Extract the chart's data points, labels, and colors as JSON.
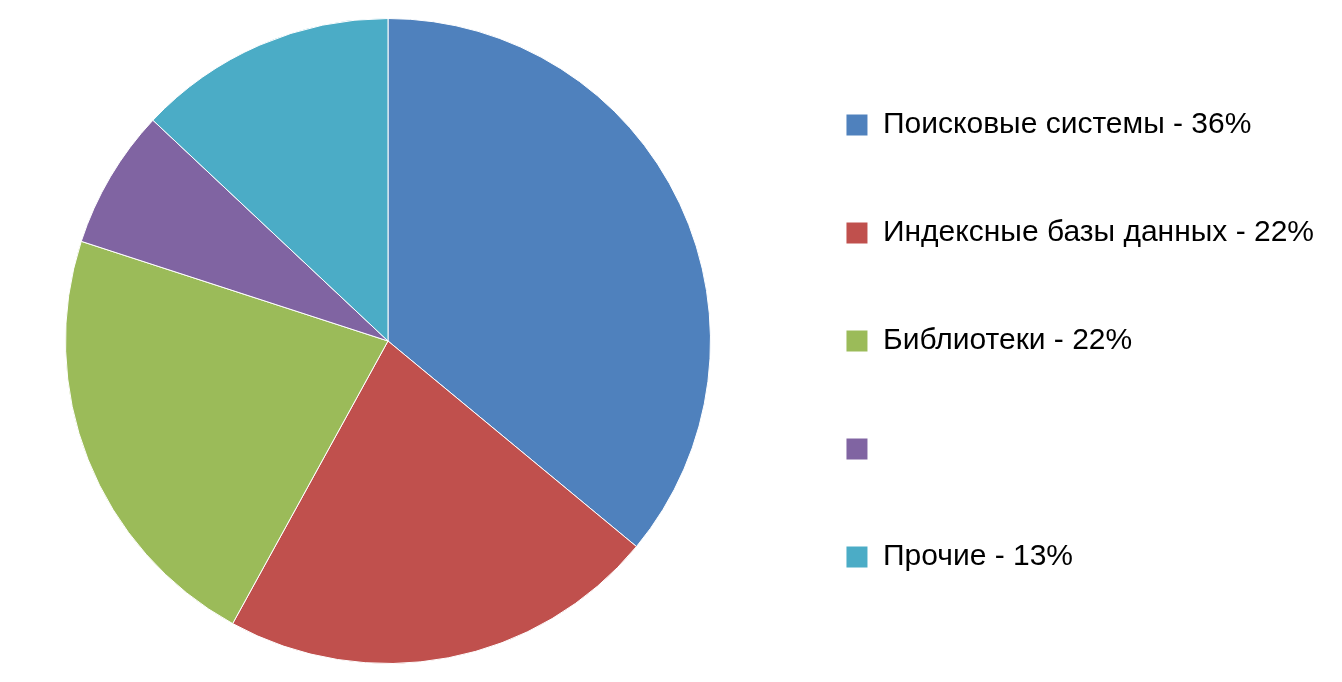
{
  "chart_data": {
    "type": "pie",
    "categories": [
      "Поисковые системы - 36%",
      "Индексные базы данных - 22%",
      "Библиотеки - 22%",
      null,
      "Прочие - 13%"
    ],
    "values": [
      36,
      22,
      22,
      7,
      13
    ],
    "colors": [
      "#4f81bd",
      "#c0504d",
      "#9bbb59",
      "#8064a2",
      "#4bacc6"
    ],
    "legend": "right"
  }
}
